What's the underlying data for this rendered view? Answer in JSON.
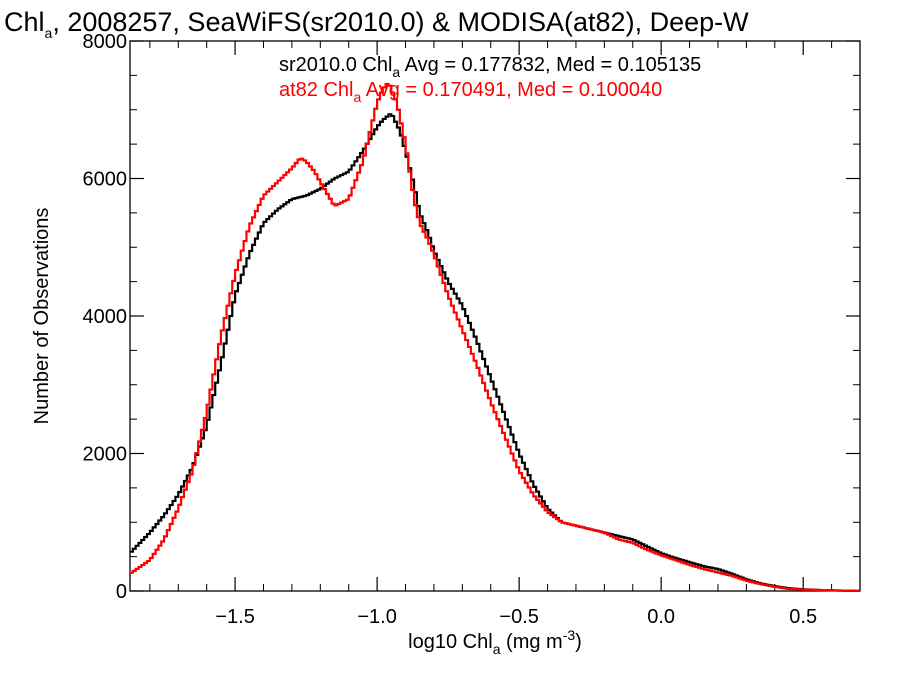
{
  "chart_data": {
    "type": "line",
    "title": {
      "pre": "Chl",
      "sub": "a",
      "post": ", 2008257, SeaWiFS(sr2010.0) & MODISA(at82), Deep-W"
    },
    "xlabel": {
      "pre": "log10 Chl",
      "sub": "a",
      "mid": " (mg m",
      "sup": "-3",
      "post": ")"
    },
    "ylabel": "Number of Observations",
    "xlim": [
      -1.87,
      0.7
    ],
    "ylim": [
      0,
      8000
    ],
    "xticks": [
      -1.5,
      -1.0,
      -0.5,
      0.0,
      0.5
    ],
    "xtick_labels": [
      "−1.5",
      "−1.0",
      "−0.5",
      "0.0",
      "0.5"
    ],
    "yticks": [
      0,
      2000,
      4000,
      6000,
      8000
    ],
    "ytick_labels": [
      "0",
      "2000",
      "4000",
      "6000",
      "8000"
    ],
    "grid": false,
    "annotations": [
      {
        "name": "sr2010",
        "color": "#000000",
        "pre": "sr2010.0 Chl",
        "sub": "a",
        "post": " Avg = 0.177832, Med = 0.105135"
      },
      {
        "name": "at82",
        "color": "#ff0000",
        "pre": "at82 Chl",
        "sub": "a",
        "post": " Avg = 0.170491, Med = 0.100040"
      }
    ],
    "series": [
      {
        "color": "#000000",
        "x": [
          -1.87,
          -1.8,
          -1.75,
          -1.7,
          -1.65,
          -1.6,
          -1.55,
          -1.5,
          -1.45,
          -1.4,
          -1.35,
          -1.3,
          -1.25,
          -1.2,
          -1.15,
          -1.1,
          -1.05,
          -1.0,
          -0.98,
          -0.95,
          -0.92,
          -0.9,
          -0.87,
          -0.85,
          -0.82,
          -0.8,
          -0.75,
          -0.7,
          -0.65,
          -0.6,
          -0.55,
          -0.5,
          -0.45,
          -0.4,
          -0.35,
          -0.3,
          -0.25,
          -0.2,
          -0.15,
          -0.1,
          -0.05,
          0.0,
          0.05,
          0.1,
          0.15,
          0.2,
          0.25,
          0.3,
          0.35,
          0.4,
          0.45,
          0.5,
          0.55,
          0.6,
          0.65,
          0.7
        ],
        "y": [
          550,
          850,
          1100,
          1400,
          1800,
          2400,
          3300,
          4300,
          4900,
          5350,
          5550,
          5700,
          5750,
          5850,
          6000,
          6100,
          6400,
          6750,
          6850,
          6950,
          6700,
          6400,
          5900,
          5500,
          5200,
          4950,
          4500,
          4150,
          3650,
          3100,
          2550,
          2000,
          1550,
          1200,
          1000,
          950,
          900,
          850,
          800,
          750,
          650,
          550,
          480,
          420,
          360,
          320,
          250,
          170,
          110,
          70,
          40,
          25,
          15,
          10,
          5,
          2
        ]
      },
      {
        "color": "#ff0000",
        "x": [
          -1.87,
          -1.8,
          -1.75,
          -1.7,
          -1.65,
          -1.6,
          -1.55,
          -1.5,
          -1.45,
          -1.4,
          -1.35,
          -1.3,
          -1.27,
          -1.25,
          -1.22,
          -1.2,
          -1.15,
          -1.1,
          -1.05,
          -1.0,
          -0.98,
          -0.96,
          -0.95,
          -0.93,
          -0.9,
          -0.87,
          -0.85,
          -0.82,
          -0.8,
          -0.75,
          -0.7,
          -0.65,
          -0.6,
          -0.55,
          -0.5,
          -0.45,
          -0.4,
          -0.35,
          -0.3,
          -0.25,
          -0.2,
          -0.15,
          -0.1,
          -0.05,
          0.0,
          0.05,
          0.1,
          0.15,
          0.2,
          0.25,
          0.3,
          0.35,
          0.4,
          0.45,
          0.5,
          0.55,
          0.6,
          0.65,
          0.7
        ],
        "y": [
          250,
          450,
          750,
          1200,
          1750,
          2600,
          3700,
          4600,
          5300,
          5750,
          5950,
          6150,
          6300,
          6250,
          6100,
          5950,
          5600,
          5700,
          6250,
          7100,
          7300,
          7400,
          7300,
          7100,
          6500,
          5700,
          5350,
          5100,
          4900,
          4300,
          3800,
          3300,
          2750,
          2250,
          1750,
          1400,
          1150,
          1000,
          950,
          900,
          850,
          750,
          700,
          600,
          520,
          450,
          380,
          320,
          270,
          220,
          150,
          100,
          60,
          30,
          20,
          15,
          10,
          5,
          2
        ]
      }
    ]
  }
}
